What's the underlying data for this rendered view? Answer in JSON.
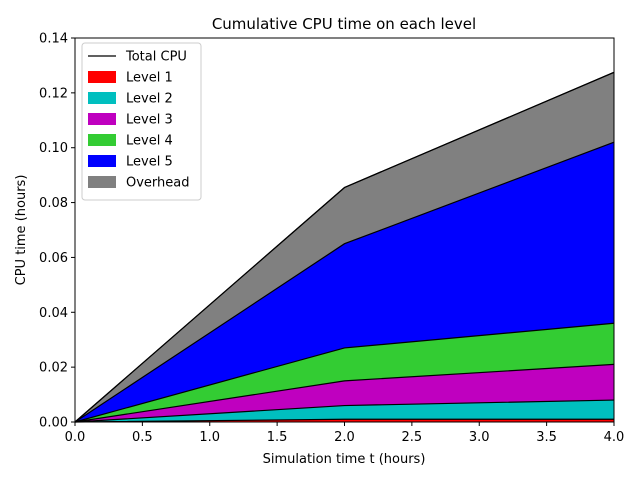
{
  "chart_data": {
    "type": "area",
    "title": "Cumulative CPU time on each level",
    "xlabel": "Simulation time t (hours)",
    "ylabel": "CPU time (hours)",
    "xlim": [
      0,
      4
    ],
    "ylim": [
      0,
      0.14
    ],
    "x": [
      0,
      2,
      4
    ],
    "xticks": [
      "0.0",
      "0.5",
      "1.0",
      "1.5",
      "2.0",
      "2.5",
      "3.0",
      "3.5",
      "4.0"
    ],
    "yticks": [
      "0.00",
      "0.02",
      "0.04",
      "0.06",
      "0.08",
      "0.10",
      "0.12",
      "0.14"
    ],
    "stacked": true,
    "grid": false,
    "legend_position": "top-left",
    "total_line": {
      "name": "Total CPU",
      "values": [
        0,
        0.0855,
        0.1275
      ],
      "color": "#000000"
    },
    "series": [
      {
        "name": "Level 1",
        "values": [
          0,
          0.001,
          0.001
        ],
        "color": "#ff0000"
      },
      {
        "name": "Level 2",
        "values": [
          0,
          0.005,
          0.007
        ],
        "color": "#00bfbf"
      },
      {
        "name": "Level 3",
        "values": [
          0,
          0.009,
          0.013
        ],
        "color": "#bf00bf"
      },
      {
        "name": "Level 4",
        "values": [
          0,
          0.012,
          0.015
        ],
        "color": "#33cc33"
      },
      {
        "name": "Level 5",
        "values": [
          0,
          0.038,
          0.066
        ],
        "color": "#0000ff"
      },
      {
        "name": "Overhead",
        "values": [
          0,
          0.0205,
          0.0255
        ],
        "color": "#808080"
      }
    ]
  }
}
